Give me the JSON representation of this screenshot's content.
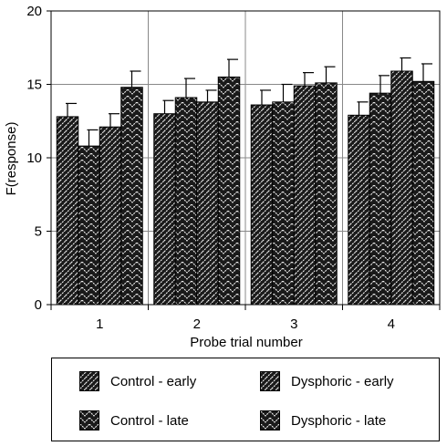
{
  "chart_data": {
    "type": "bar",
    "title": "",
    "xlabel": "Probe trial number",
    "ylabel": "F(response)",
    "categories": [
      "1",
      "2",
      "3",
      "4"
    ],
    "ylim": [
      0,
      20
    ],
    "yticks": [
      0,
      5,
      10,
      15,
      20
    ],
    "grid": true,
    "legend_placement": "bottom",
    "series": [
      {
        "name": "Control - early",
        "pattern": "hatch-right",
        "values": [
          12.8,
          13.0,
          13.6,
          12.9
        ],
        "errors": [
          0.9,
          0.9,
          1.0,
          0.9
        ]
      },
      {
        "name": "Control - late",
        "pattern": "chevron-down",
        "values": [
          10.8,
          14.1,
          13.8,
          14.4
        ],
        "errors": [
          1.1,
          1.3,
          1.2,
          1.2
        ]
      },
      {
        "name": "Dysphoric - early",
        "pattern": "hatch-right",
        "values": [
          12.1,
          13.8,
          14.9,
          15.9
        ],
        "errors": [
          0.9,
          0.8,
          0.9,
          0.9
        ]
      },
      {
        "name": "Dysphoric - late",
        "pattern": "chevron-down",
        "values": [
          14.8,
          15.5,
          15.1,
          15.2
        ],
        "errors": [
          1.1,
          1.2,
          1.1,
          1.2
        ]
      }
    ],
    "colors": {
      "bar": "#1a1a1a",
      "hatch": "#ffffff",
      "axis": "#000000",
      "grid": "#888888"
    }
  }
}
